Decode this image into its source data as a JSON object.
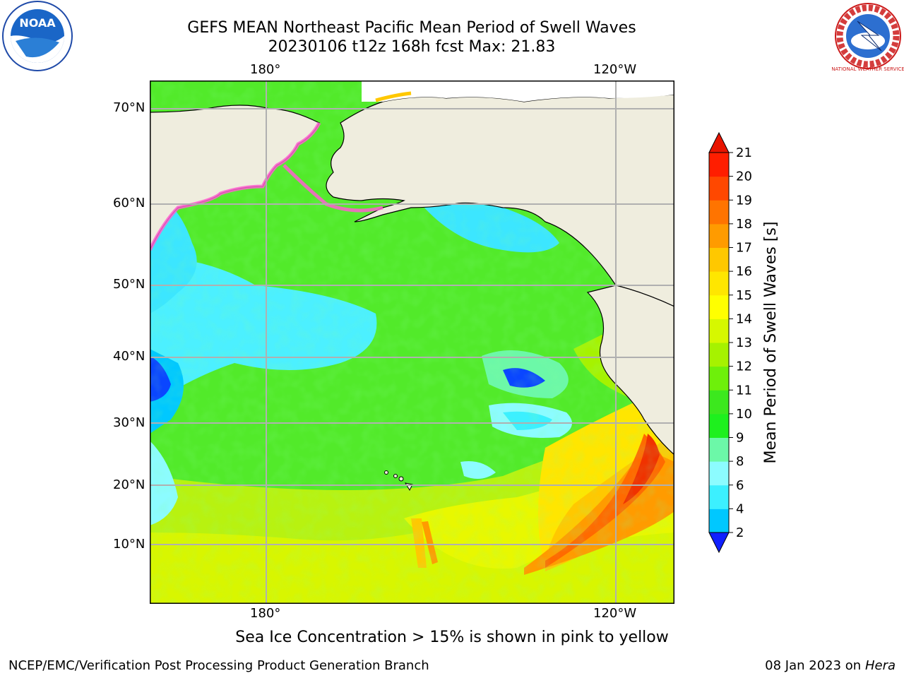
{
  "title_line1": "GEFS MEAN Northeast Pacific Mean Period of Swell Waves",
  "title_line2": "20230106 t12z 168h fcst   Max: 21.83",
  "lon_labels": [
    "180°",
    "120°W"
  ],
  "lat_labels": [
    "70°N",
    "60°N",
    "50°N",
    "40°N",
    "30°N",
    "20°N",
    "10°N"
  ],
  "colorbar": {
    "label": "Mean Period of Swell Waves [s]",
    "ticks": [
      "2",
      "4",
      "6",
      "8",
      "9",
      "10",
      "11",
      "12",
      "13",
      "14",
      "15",
      "16",
      "17",
      "18",
      "19",
      "20",
      "21"
    ],
    "colors": [
      "#0a46ff",
      "#00c8ff",
      "#3cf0ff",
      "#8cfcff",
      "#6cf8a8",
      "#1ef01e",
      "#3ce81e",
      "#6ef00a",
      "#a6f200",
      "#d6f800",
      "#ffff00",
      "#ffe600",
      "#ffc800",
      "#ff9b00",
      "#ff7400",
      "#ff4800",
      "#ff1e00"
    ],
    "under_color": "#1020ff",
    "over_color": "#e81400"
  },
  "note": "Sea Ice Concentration > 15% is shown in pink to yellow",
  "footer_left": "NCEP/EMC/Verification Post Processing Product Generation Branch",
  "footer_date": "08 Jan 2023 on",
  "footer_machine": "Hera",
  "logos": {
    "left": "NOAA",
    "right": "NATIONAL WEATHER SERVICE"
  },
  "colors": {
    "land": "#efedde",
    "grid": "#b0b0b0",
    "border": "#000000"
  }
}
